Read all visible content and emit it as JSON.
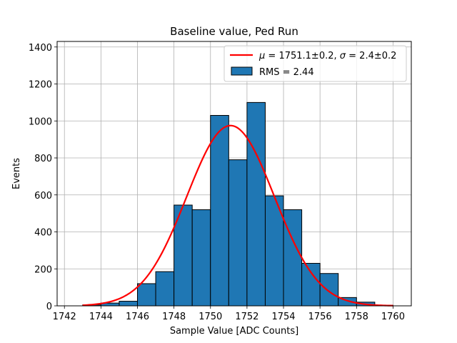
{
  "chart_data": {
    "type": "bar",
    "title": "Baseline value, Ped Run",
    "xlabel": "Sample Value [ADC Counts]",
    "ylabel": "Events",
    "xlim": [
      1741.6,
      1761.0
    ],
    "ylim": [
      0,
      1430
    ],
    "xticks": [
      1742,
      1744,
      1746,
      1748,
      1750,
      1752,
      1754,
      1756,
      1758,
      1760
    ],
    "yticks": [
      0,
      200,
      400,
      600,
      800,
      1000,
      1200,
      1400
    ],
    "grid": true,
    "legend_position": "top-right",
    "series": [
      {
        "name": "RMS = 2.44",
        "kind": "histogram",
        "color": "#1f77b4",
        "edge_color": "#000000",
        "bins": [
          {
            "x0": 1743.0,
            "x1": 1744.0,
            "value": 5
          },
          {
            "x0": 1744.0,
            "x1": 1745.0,
            "value": 15
          },
          {
            "x0": 1745.0,
            "x1": 1746.0,
            "value": 25
          },
          {
            "x0": 1746.0,
            "x1": 1747.0,
            "value": 120
          },
          {
            "x0": 1747.0,
            "x1": 1748.0,
            "value": 185
          },
          {
            "x0": 1748.0,
            "x1": 1749.0,
            "value": 545
          },
          {
            "x0": 1749.0,
            "x1": 1750.0,
            "value": 520
          },
          {
            "x0": 1750.0,
            "x1": 1751.0,
            "value": 1030
          },
          {
            "x0": 1751.0,
            "x1": 1752.0,
            "value": 790
          },
          {
            "x0": 1752.0,
            "x1": 1753.0,
            "value": 1100
          },
          {
            "x0": 1753.0,
            "x1": 1754.0,
            "value": 595
          },
          {
            "x0": 1754.0,
            "x1": 1755.0,
            "value": 520
          },
          {
            "x0": 1755.0,
            "x1": 1756.0,
            "value": 230
          },
          {
            "x0": 1756.0,
            "x1": 1757.0,
            "value": 175
          },
          {
            "x0": 1757.0,
            "x1": 1758.0,
            "value": 45
          },
          {
            "x0": 1758.0,
            "x1": 1759.0,
            "value": 20
          },
          {
            "x0": 1759.0,
            "x1": 1760.0,
            "value": 3
          }
        ]
      },
      {
        "name": "μ = 1751.1±0.2, σ = 2.4±0.2",
        "name_mu_symbol": "μ",
        "name_eq_mu": " = 1751.1±0.2, ",
        "name_sigma_symbol": "σ",
        "name_eq_sigma": " = 2.4±0.2",
        "kind": "gaussian_fit",
        "color": "#ff0000",
        "mu": 1751.1,
        "sigma": 2.4,
        "amplitude": 975,
        "x_range": [
          1743.0,
          1760.0
        ]
      }
    ]
  }
}
